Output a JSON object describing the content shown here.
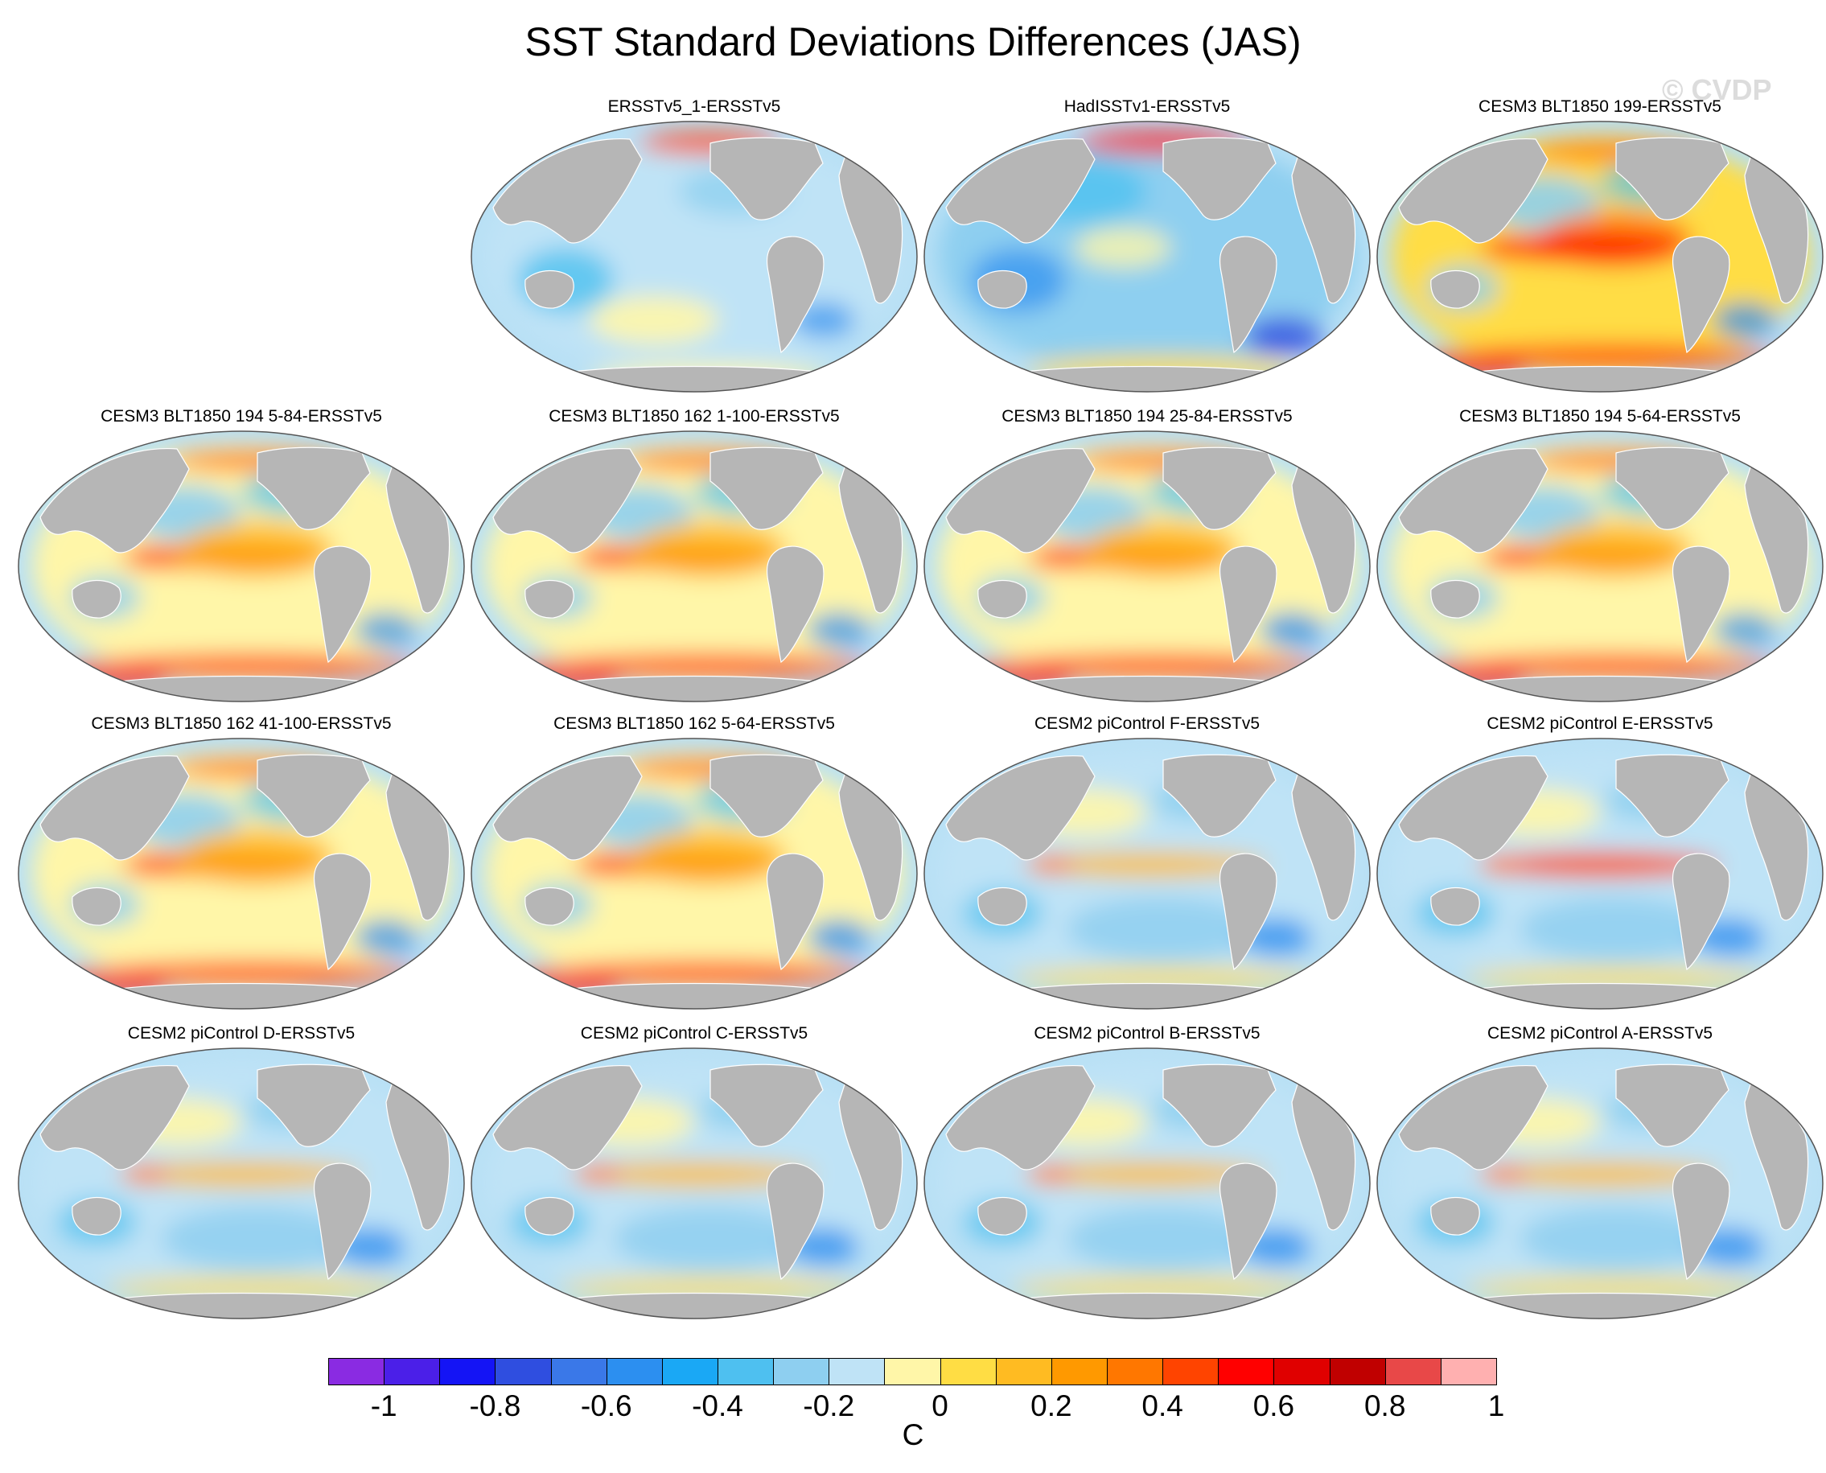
{
  "title": "SST Standard Deviations Differences (JAS)",
  "watermark": "© CVDP",
  "colors": {
    "land": "#b6b6b6",
    "frame": "#555555",
    "base_anomaly": "#b8e0f5",
    "colorbar": [
      "#8a2be2",
      "#4b1fe8",
      "#1414f5",
      "#2f4ee0",
      "#3a78e8",
      "#2c8ff0",
      "#1aa8f5",
      "#4ec0f0",
      "#8ecff0",
      "#bfe3f6",
      "#fff6a8",
      "#ffdd44",
      "#ffbb22",
      "#ff9900",
      "#ff7700",
      "#ff4400",
      "#ff0000",
      "#e00000",
      "#c00000",
      "#e84848",
      "#ffb0b0"
    ]
  },
  "colorbar": {
    "labels": [
      "-1",
      "-0.8",
      "-0.6",
      "-0.4",
      "-0.2",
      "0",
      "0.2",
      "0.4",
      "0.6",
      "0.8",
      "1"
    ],
    "units": "C"
  },
  "panels": [
    {
      "title": "ERSSTv5_1-ERSSTv5",
      "pattern": "obs-ersst"
    },
    {
      "title": "HadISSTv1-ERSSTv5",
      "pattern": "obs-hadisst"
    },
    {
      "title": "CESM3 BLT1850 199-ERSSTv5",
      "pattern": "cesm3-strong"
    },
    {
      "title": "CESM3 BLT1850 194 5-84-ERSSTv5",
      "pattern": "cesm3"
    },
    {
      "title": "CESM3 BLT1850 162 1-100-ERSSTv5",
      "pattern": "cesm3"
    },
    {
      "title": "CESM3 BLT1850 194 25-84-ERSSTv5",
      "pattern": "cesm3"
    },
    {
      "title": "CESM3 BLT1850 194 5-64-ERSSTv5",
      "pattern": "cesm3"
    },
    {
      "title": "CESM3 BLT1850 162 41-100-ERSSTv5",
      "pattern": "cesm3"
    },
    {
      "title": "CESM3 BLT1850 162 5-64-ERSSTv5",
      "pattern": "cesm3"
    },
    {
      "title": "CESM2 piControl F-ERSSTv5",
      "pattern": "cesm2"
    },
    {
      "title": "CESM2 piControl E-ERSSTv5",
      "pattern": "cesm2-strong"
    },
    {
      "title": "CESM2 piControl D-ERSSTv5",
      "pattern": "cesm2"
    },
    {
      "title": "CESM2 piControl C-ERSSTv5",
      "pattern": "cesm2"
    },
    {
      "title": "CESM2 piControl B-ERSSTv5",
      "pattern": "cesm2"
    },
    {
      "title": "CESM2 piControl A-ERSSTv5",
      "pattern": "cesm2"
    }
  ]
}
